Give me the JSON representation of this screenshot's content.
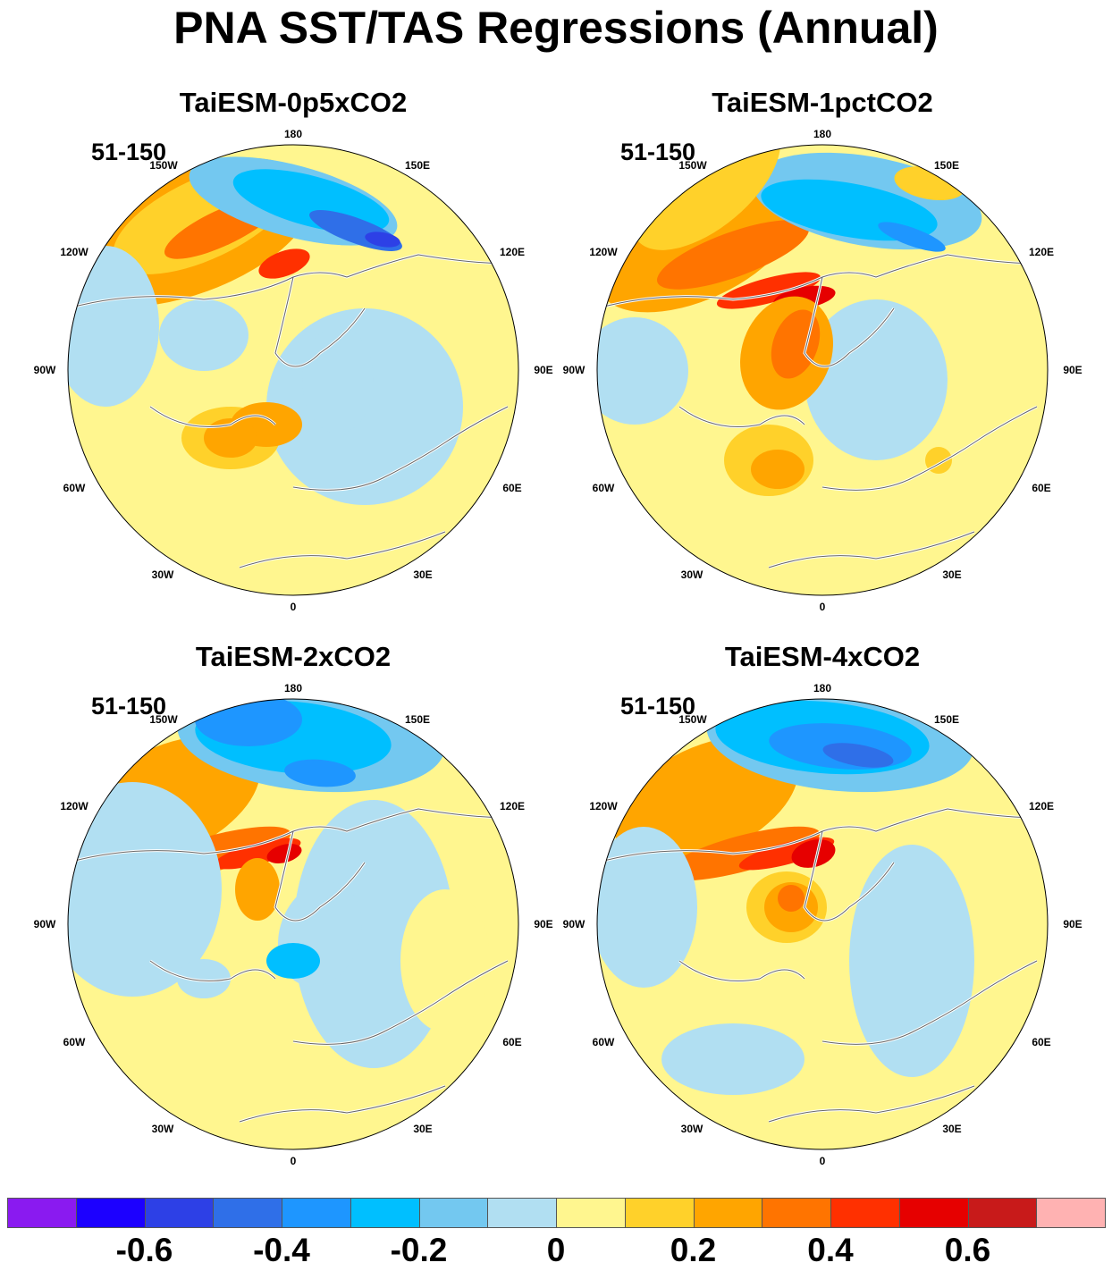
{
  "title": "PNA SST/TAS Regressions (Annual)",
  "panels": [
    {
      "name": "TaiESM-0p5xCO2",
      "period": "51-150"
    },
    {
      "name": "TaiESM-1pctCO2",
      "period": "51-150"
    },
    {
      "name": "TaiESM-2xCO2",
      "period": "51-150"
    },
    {
      "name": "TaiESM-4xCO2",
      "period": "51-150"
    }
  ],
  "lon_labels": {
    "l180": "180",
    "l150e": "150E",
    "l120e": "120E",
    "l90e": "90E",
    "l60e": "60E",
    "l30e": "30E",
    "l0": "0",
    "l30w": "30W",
    "l60w": "60W",
    "l90w": "90W",
    "l120w": "120W",
    "l150w": "150W"
  },
  "colorbar": {
    "colors": [
      "#8a1af0",
      "#1c00ff",
      "#2d40e6",
      "#2f6fe8",
      "#1e96ff",
      "#00bfff",
      "#73c8f0",
      "#b1dff2",
      "#fff68f",
      "#ffd12a",
      "#ffa500",
      "#ff7400",
      "#ff3000",
      "#e60000",
      "#c81a1a",
      "#ffb2b2"
    ],
    "labels": [
      "-0.6",
      "-0.4",
      "-0.2",
      "0",
      "0.2",
      "0.4",
      "0.6"
    ]
  }
}
